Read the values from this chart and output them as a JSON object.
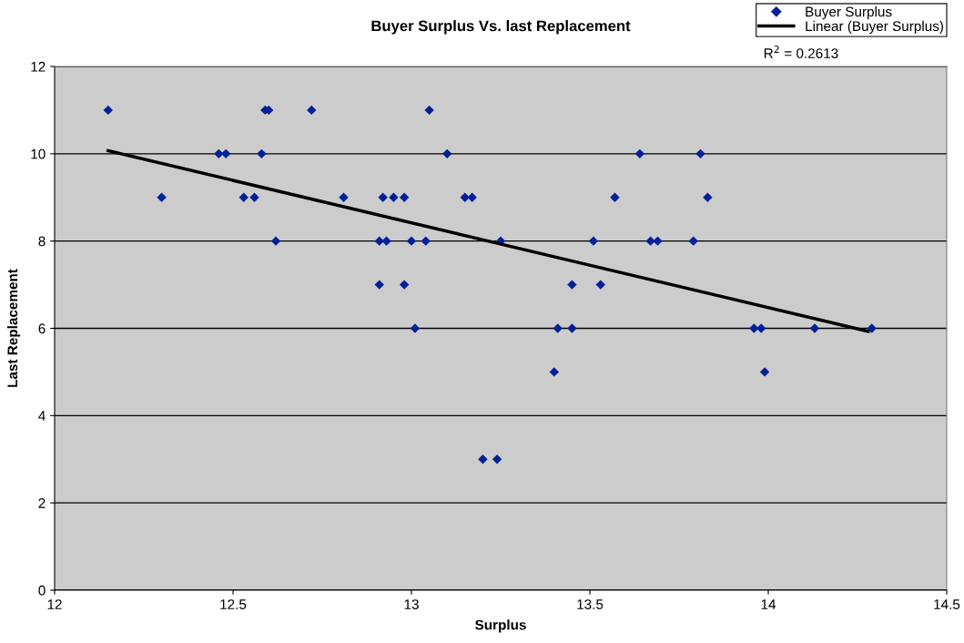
{
  "chart_data": {
    "type": "scatter",
    "title": "Buyer Surplus Vs. last Replacement",
    "xlabel": "Surplus",
    "ylabel": "Last Replacement",
    "xlim": [
      12,
      14.5
    ],
    "xticks": [
      12,
      12.5,
      13,
      13.5,
      14,
      14.5
    ],
    "ylim": [
      0,
      12
    ],
    "yticks": [
      0,
      2,
      4,
      6,
      8,
      10,
      12
    ],
    "grid": "y",
    "legend": "top right",
    "marker": "diamond",
    "series": [
      {
        "name": "Buyer Surplus",
        "color": "#002099",
        "x": [
          12.15,
          12.3,
          12.46,
          12.48,
          12.53,
          12.56,
          12.58,
          12.59,
          12.6,
          12.62,
          12.72,
          12.81,
          12.91,
          12.91,
          12.92,
          12.93,
          12.95,
          12.98,
          12.98,
          13.0,
          13.01,
          13.04,
          13.05,
          13.1,
          13.15,
          13.17,
          13.2,
          13.24,
          13.25,
          13.4,
          13.41,
          13.45,
          13.45,
          13.51,
          13.53,
          13.57,
          13.64,
          13.67,
          13.69,
          13.79,
          13.81,
          13.83,
          13.96,
          13.98,
          13.99,
          14.13,
          14.29
        ],
        "values": [
          11,
          9,
          10,
          10,
          9,
          9,
          10,
          11,
          11,
          8,
          11,
          9,
          8,
          7,
          9,
          8,
          9,
          9,
          7,
          8,
          6,
          8,
          11,
          10,
          9,
          9,
          3,
          3,
          8,
          5,
          6,
          6,
          7,
          8,
          7,
          9,
          10,
          8,
          8,
          8,
          10,
          9,
          6,
          6,
          5,
          6,
          6
        ]
      },
      {
        "name": "Linear (Buyer Surplus)",
        "type": "line",
        "color": "#000000",
        "marker": "none",
        "x": [
          12.15,
          14.28
        ],
        "values": [
          10.07,
          5.93
        ]
      }
    ],
    "annotations": [
      "R$^{2}$ = 0.2613"
    ]
  }
}
